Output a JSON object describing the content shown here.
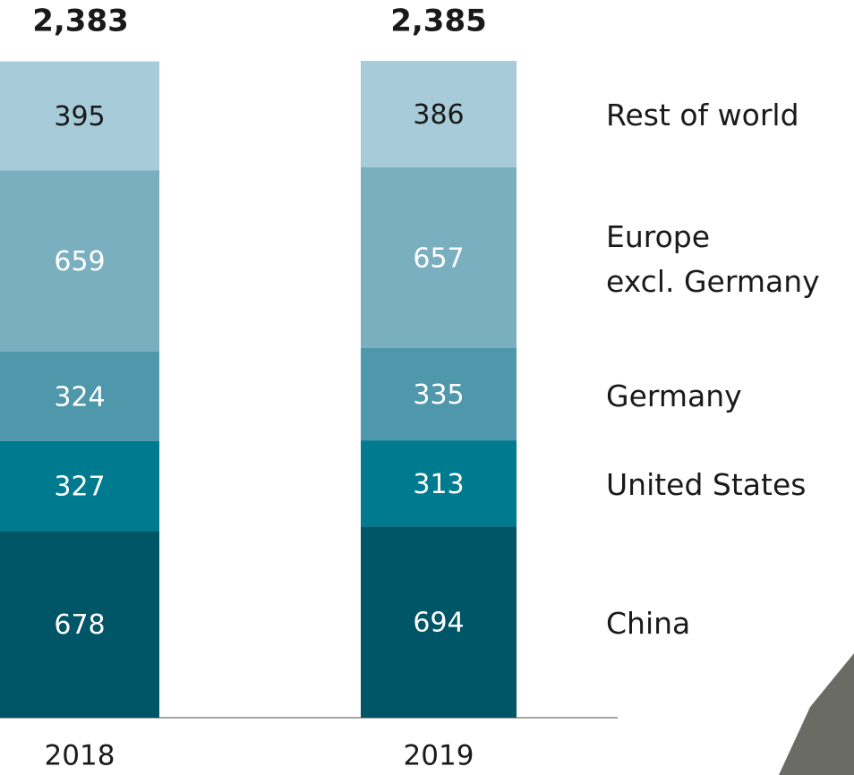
{
  "chart_data": {
    "type": "stacked-bar",
    "categories": [
      "2018",
      "2019"
    ],
    "series": [
      {
        "name": "China",
        "color": "#005566",
        "label_color": "#ffffff",
        "values": [
          678,
          694
        ]
      },
      {
        "name": "United States",
        "color": "#007a8f",
        "label_color": "#ffffff",
        "values": [
          327,
          313
        ]
      },
      {
        "name": "Germany",
        "color": "#4f97aa",
        "label_color": "#ffffff",
        "values": [
          324,
          335
        ]
      },
      {
        "name": "Europe\nexcl. Germany",
        "color": "#7aafbf",
        "label_color": "#ffffff",
        "values": [
          659,
          657
        ]
      },
      {
        "name": "Rest of world",
        "color": "#a8cbd9",
        "label_color": "#1a1a1a",
        "values": [
          395,
          386
        ]
      }
    ],
    "totals": {
      "values": [
        2383,
        2385
      ],
      "value_labels": [
        "2,383",
        "2,385"
      ]
    }
  }
}
